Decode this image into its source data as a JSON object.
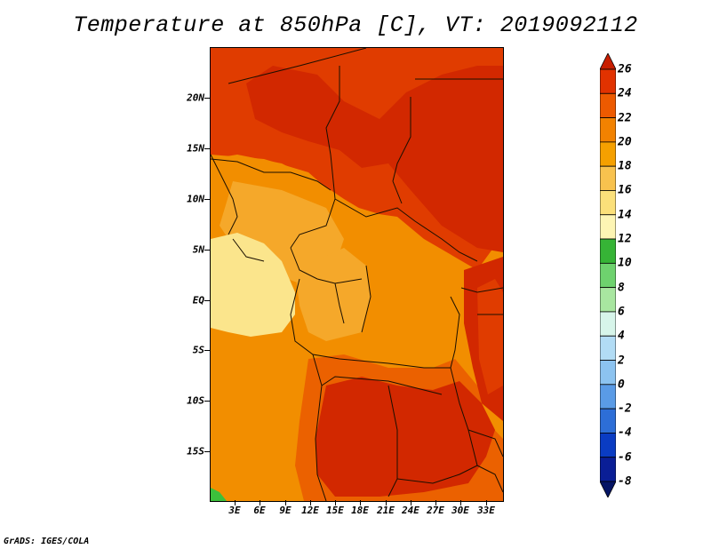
{
  "title": "Temperature at 850hPa [C], VT: 2019092112",
  "footer": "GrADS: IGES/COLA",
  "map": {
    "region": "Central Africa",
    "lat_labels": [
      "20N",
      "15N",
      "10N",
      "5N",
      "EQ",
      "5S",
      "10S",
      "15S"
    ],
    "lon_labels": [
      "3E",
      "6E",
      "9E",
      "12E",
      "15E",
      "18E",
      "21E",
      "24E",
      "27E",
      "30E",
      "33E"
    ]
  },
  "colorbar": {
    "labels": [
      "26",
      "24",
      "22",
      "20",
      "18",
      "16",
      "14",
      "12",
      "10",
      "8",
      "6",
      "4",
      "2",
      "0",
      "-2",
      "-4",
      "-6",
      "-8"
    ],
    "colors": [
      "#c81e00",
      "#e13200",
      "#ed5a00",
      "#f28200",
      "#f5a000",
      "#f8c24e",
      "#fbe07a",
      "#fdf5b4",
      "#36b436",
      "#6ed26e",
      "#a8e6a0",
      "#d7f5ea",
      "#b2dcf5",
      "#8cc3f0",
      "#5a9be6",
      "#2d6ed7",
      "#0a3cc3",
      "#0a1e96",
      "#051464"
    ]
  },
  "map_colors": {
    "c26": "#d22800",
    "c24": "#e03c00",
    "c22": "#eb6100",
    "c20": "#f28e00",
    "c18": "#f5a82a",
    "c16": "#f9d36a",
    "c14": "#fbe58c",
    "green": "#3cc03c",
    "border": "#1a0f00"
  }
}
